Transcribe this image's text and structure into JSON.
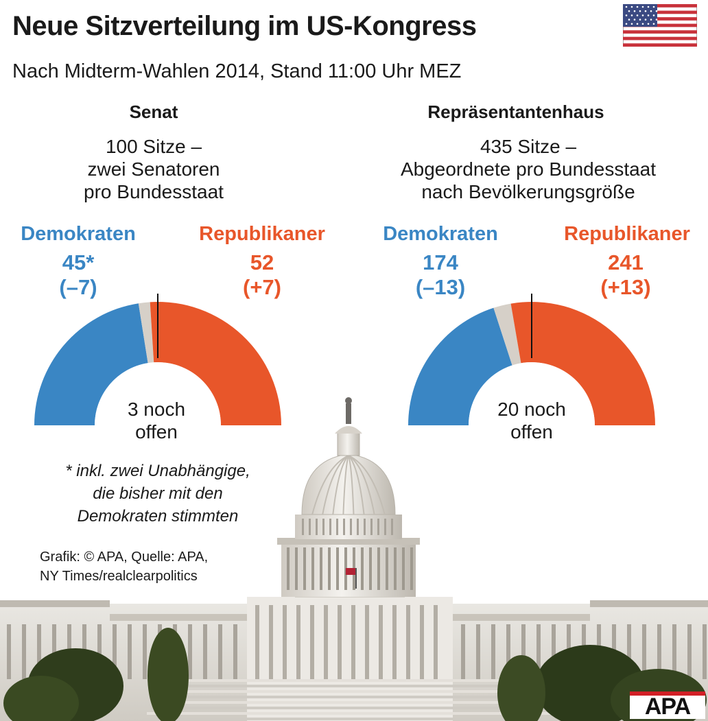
{
  "header": {
    "title": "Neue Sitzverteilung im US-Kongress",
    "subtitle": "Nach Midterm-Wahlen 2014, Stand 11:00 Uhr MEZ"
  },
  "colors": {
    "democrats": "#3a86c4",
    "republicans": "#e8562a",
    "open": "#d6d0c8"
  },
  "chart_data": [
    {
      "type": "pie",
      "variant": "half-donut",
      "title": "Senat",
      "description": "100 Sitze –\nzwei Senatoren\npro Bundesstaat",
      "total_seats": 100,
      "series": [
        {
          "name": "Demokraten",
          "value": 45,
          "value_label": "45*",
          "change": "(–7)"
        },
        {
          "name": "Republikaner",
          "value": 52,
          "value_label": "52",
          "change": "(+7)"
        },
        {
          "name": "offen",
          "value": 3
        }
      ],
      "center_label": "3 noch\noffen"
    },
    {
      "type": "pie",
      "variant": "half-donut",
      "title": "Repräsentantenhaus",
      "description": "435 Sitze –\nAbgeordnete pro Bundesstaat\nnach Bevölkerungsgröße",
      "total_seats": 435,
      "series": [
        {
          "name": "Demokraten",
          "value": 174,
          "value_label": "174",
          "change": "(–13)"
        },
        {
          "name": "Republikaner",
          "value": 241,
          "value_label": "241",
          "change": "(+13)"
        },
        {
          "name": "offen",
          "value": 20
        }
      ],
      "center_label": "20 noch\noffen"
    }
  ],
  "footnote": "* inkl. zwei Unabhängige,\ndie bisher mit den\nDemokraten stimmten",
  "source": "Grafik: © APA, Quelle: APA,\nNY Times/realclearpolitics",
  "logo": {
    "text": "APA",
    "icon": "apa-logo"
  },
  "flag": {
    "icon": "us-flag-icon"
  },
  "background_image": {
    "icon": "capitol-building-illustration"
  }
}
